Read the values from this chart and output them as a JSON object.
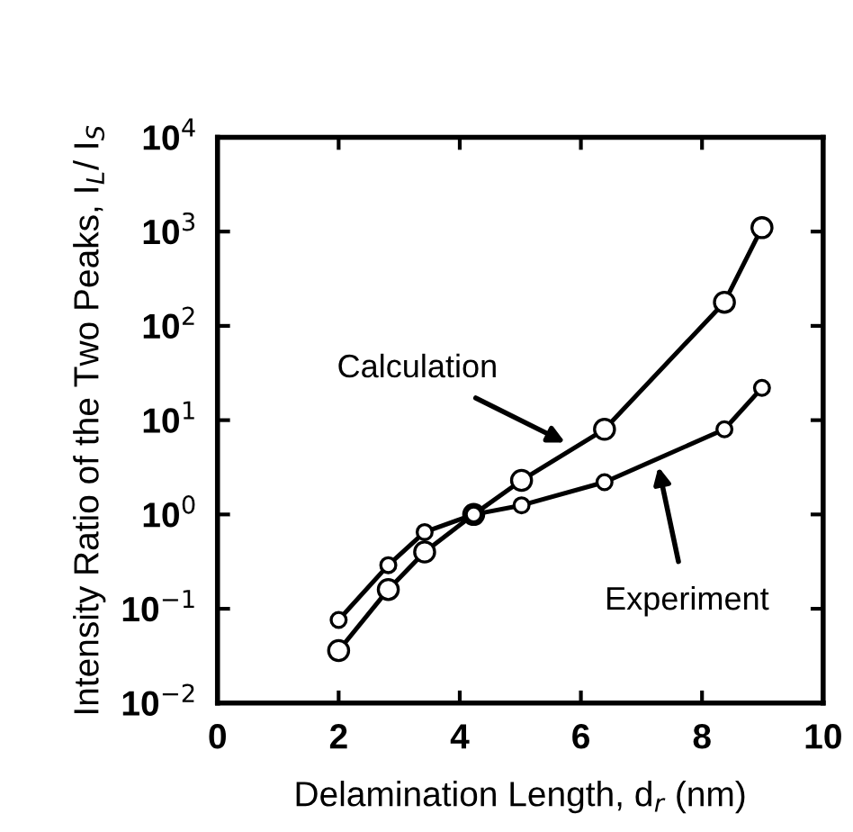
{
  "chart_data": {
    "type": "line",
    "xlabel": "Delamination Length, d$_{r}$ (nm)",
    "ylabel": "Intensity Ratio of the Two Peaks, I$_{L}$/ I$_{S}$",
    "log": "y",
    "marker": "circle",
    "line_style": "solid",
    "grid": false,
    "legend": false,
    "xlim": [
      0,
      10
    ],
    "xticks": [
      0,
      2,
      4,
      6,
      8,
      10
    ],
    "ylim": [
      0.01,
      10000
    ],
    "yticks": [
      {
        "value": 0.01,
        "label": "10$^{−2}$"
      },
      {
        "value": 0.1,
        "label": "10$^{−1}$"
      },
      {
        "value": 1,
        "label": "10$^{0}$"
      },
      {
        "value": 10,
        "label": "10$^{1}$"
      },
      {
        "value": 100,
        "label": "10$^{2}$"
      },
      {
        "value": 1000,
        "label": "10$^{3}$"
      },
      {
        "value": 10000,
        "label": "10$^{4}$"
      }
    ],
    "series": [
      {
        "color": "#000000",
        "x": [
          2.0,
          2.82,
          3.42,
          4.23,
          5.02,
          6.39,
          8.37,
          8.99
        ],
        "values": [
          0.036,
          0.16,
          0.4,
          1.0,
          2.3,
          8,
          178,
          1100
        ]
      },
      {
        "color": "#000000",
        "x": [
          2.0,
          2.82,
          3.42,
          4.23,
          5.02,
          6.39,
          8.37,
          8.99
        ],
        "values": [
          0.076,
          0.29,
          0.65,
          1.0,
          1.25,
          2.2,
          8,
          22
        ]
      }
    ],
    "annotations": [
      {
        "text": "Calculation",
        "x": 5.74,
        "y": 5.8
      },
      {
        "text": "Experiment",
        "x": 7.28,
        "y": 3.2
      }
    ]
  }
}
